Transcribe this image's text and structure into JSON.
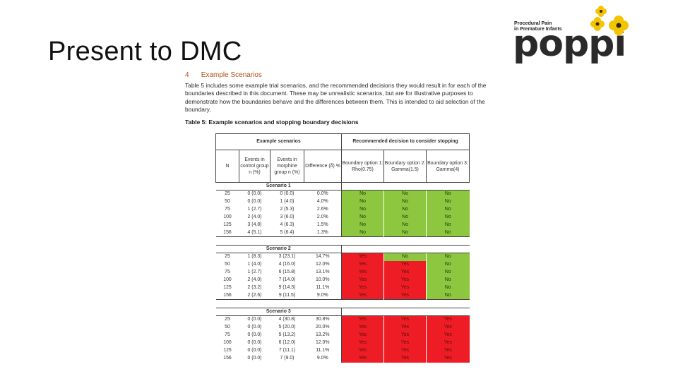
{
  "slide": {
    "title": "Present to DMC"
  },
  "logo": {
    "tagline_line1": "Procedural Pain",
    "tagline_line2": "in Premature Infants",
    "wordmark": "poppi",
    "flower_color": "#f5c400"
  },
  "document": {
    "section_number": "4",
    "section_title": "Example Scenarios",
    "paragraph": "Table 5 includes some example trial scenarios, and the recommended decisions they would result in for each of the boundaries described in this document. These may be unrealistic scenarios, but are for illustrative purposes to demonstrate how the boundaries behave and the differences between them. This is intended to aid selection of the boundary.",
    "caption": "Table 5: Example scenarios and stopping boundary decisions"
  },
  "table": {
    "group_headers": [
      "Example scenarios",
      "Recommended decision to consider stopping"
    ],
    "columns": [
      "N",
      "Events in control group n (%)",
      "Events in morphine group n (%)",
      "Difference (δ) %",
      "Boundary option 1: Rho(0.75)",
      "Boundary option 2: Gamma(1.5)",
      "Boundary option 3: Gamma(4)"
    ],
    "colors": {
      "no": "#8dc63f",
      "yes": "#ee1c24"
    },
    "scenarios": [
      {
        "name": "Scenario 1",
        "rows": [
          {
            "n": "25",
            "control": "0 (0.0)",
            "morphine": "0 (0.0)",
            "diff": "0.0%",
            "d1": "No",
            "d2": "No",
            "d3": "No"
          },
          {
            "n": "50",
            "control": "0 (0.0)",
            "morphine": "1 (4.0)",
            "diff": "4.0%",
            "d1": "No",
            "d2": "No",
            "d3": "No"
          },
          {
            "n": "75",
            "control": "1 (2.7)",
            "morphine": "2 (5.3)",
            "diff": "2.6%",
            "d1": "No",
            "d2": "No",
            "d3": "No"
          },
          {
            "n": "100",
            "control": "2 (4.0)",
            "morphine": "3 (6.0)",
            "diff": "2.0%",
            "d1": "No",
            "d2": "No",
            "d3": "No"
          },
          {
            "n": "125",
            "control": "3 (4.8)",
            "morphine": "4 (6.3)",
            "diff": "1.5%",
            "d1": "No",
            "d2": "No",
            "d3": "No"
          },
          {
            "n": "156",
            "control": "4 (5.1)",
            "morphine": "5 (6.4)",
            "diff": "1.3%",
            "d1": "No",
            "d2": "No",
            "d3": "No"
          }
        ]
      },
      {
        "name": "Scenario 2",
        "rows": [
          {
            "n": "25",
            "control": "1 (8.3)",
            "morphine": "3 (23.1)",
            "diff": "14.7%",
            "d1": "Yes",
            "d2": "No",
            "d3": "No"
          },
          {
            "n": "50",
            "control": "1 (4.0)",
            "morphine": "4 (16.0)",
            "diff": "12.0%",
            "d1": "Yes",
            "d2": "Yes",
            "d3": "No"
          },
          {
            "n": "75",
            "control": "1 (2.7)",
            "morphine": "6 (15.8)",
            "diff": "13.1%",
            "d1": "Yes",
            "d2": "Yes",
            "d3": "No"
          },
          {
            "n": "100",
            "control": "2 (4.0)",
            "morphine": "7 (14.0)",
            "diff": "10.0%",
            "d1": "Yes",
            "d2": "Yes",
            "d3": "No"
          },
          {
            "n": "125",
            "control": "2 (3.2)",
            "morphine": "9 (14.3)",
            "diff": "11.1%",
            "d1": "Yes",
            "d2": "Yes",
            "d3": "No"
          },
          {
            "n": "156",
            "control": "2 (2.6)",
            "morphine": "9 (11.5)",
            "diff": "9.0%",
            "d1": "Yes",
            "d2": "Yes",
            "d3": "No"
          }
        ]
      },
      {
        "name": "Scenario 3",
        "rows": [
          {
            "n": "25",
            "control": "0 (0.0)",
            "morphine": "4 (30.8)",
            "diff": "30.8%",
            "d1": "Yes",
            "d2": "Yes",
            "d3": "Yes"
          },
          {
            "n": "50",
            "control": "0 (0.0)",
            "morphine": "5 (20.0)",
            "diff": "20.0%",
            "d1": "Yes",
            "d2": "Yes",
            "d3": "Yes"
          },
          {
            "n": "75",
            "control": "0 (0.0)",
            "morphine": "5 (13.2)",
            "diff": "13.2%",
            "d1": "Yes",
            "d2": "Yes",
            "d3": "Yes"
          },
          {
            "n": "100",
            "control": "0 (0.0)",
            "morphine": "6 (12.0)",
            "diff": "12.0%",
            "d1": "Yes",
            "d2": "Yes",
            "d3": "Yes"
          },
          {
            "n": "125",
            "control": "0 (0.0)",
            "morphine": "7 (11.1)",
            "diff": "11.1%",
            "d1": "Yes",
            "d2": "Yes",
            "d3": "Yes"
          },
          {
            "n": "156",
            "control": "0 (0.0)",
            "morphine": "7 (9.0)",
            "diff": "9.0%",
            "d1": "Yes",
            "d2": "Yes",
            "d3": "Yes"
          }
        ]
      }
    ]
  }
}
